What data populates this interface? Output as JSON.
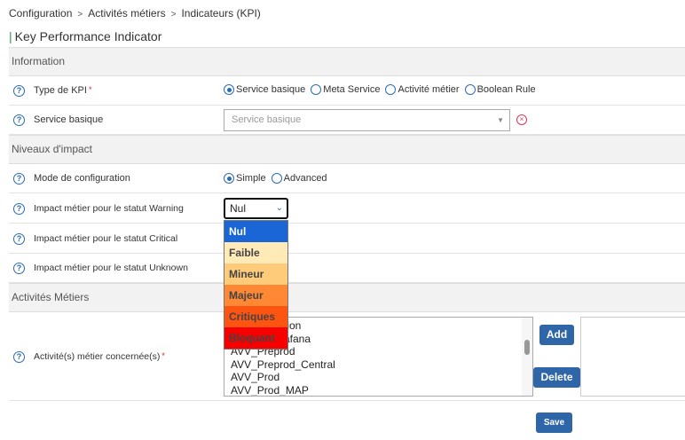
{
  "breadcrumb": [
    "Configuration",
    "Activités métiers",
    "Indicateurs (KPI)"
  ],
  "page_title": "Key Performance Indicator",
  "sections": {
    "information": "Information",
    "impact": "Niveaux d'impact",
    "activites": "Activités Métiers"
  },
  "kpi_type": {
    "label": "Type de KPI",
    "options": [
      "Service basique",
      "Meta Service",
      "Activité métier",
      "Boolean Rule"
    ],
    "selected": "Service basique"
  },
  "service": {
    "label": "Service basique",
    "placeholder": "Service basique"
  },
  "mode": {
    "label": "Mode de configuration",
    "options": [
      "Simple",
      "Advanced"
    ],
    "selected": "Simple"
  },
  "warning": {
    "label": "Impact métier pour le statut Warning",
    "value": "Nul"
  },
  "critical": {
    "label": "Impact métier pour le statut Critical"
  },
  "unknown": {
    "label": "Impact métier pour le statut Unknown"
  },
  "impact_options": [
    {
      "label": "Nul",
      "color": "#1a66d6"
    },
    {
      "label": "Faible",
      "color": "#ffeab8"
    },
    {
      "label": "Mineur",
      "color": "#fecb7a"
    },
    {
      "label": "Majeur",
      "color": "#fe8833"
    },
    {
      "label": "Critiques",
      "color": "#fe5411"
    },
    {
      "label": "Bloquant",
      "color": "#f90000"
    }
  ],
  "activites": {
    "label": "Activité(s) métier concernée(s)",
    "items": [
      "tion",
      "afana",
      "AVV_Preprod",
      "AVV_Preprod_Central",
      "AVV_Prod",
      "AVV_Prod_MAP"
    ],
    "add": "Add",
    "delete": "Delete"
  },
  "save": "Save"
}
